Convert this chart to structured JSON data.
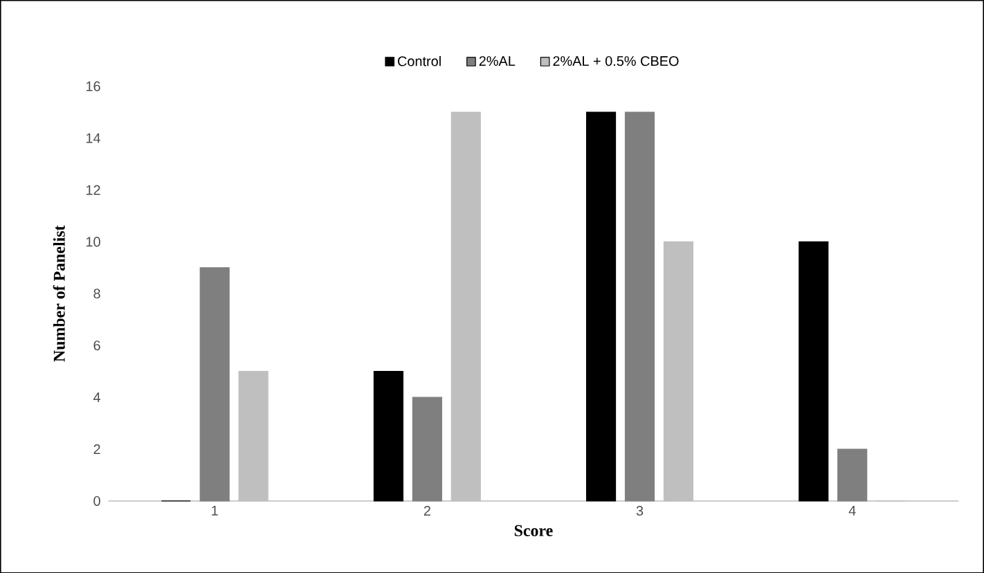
{
  "chart_data": {
    "type": "bar",
    "xlabel": "Score",
    "ylabel": "Number  of Panelist",
    "categories": [
      "1",
      "2",
      "3",
      "4"
    ],
    "series": [
      {
        "name": "Control",
        "color": "#000000",
        "values": [
          0,
          5,
          15,
          10
        ]
      },
      {
        "name": "2%AL",
        "color": "#7f7f7f",
        "values": [
          9,
          4,
          15,
          2
        ]
      },
      {
        "name": "2%AL + 0.5% CBEO",
        "color": "#bfbfbf",
        "values": [
          5,
          15,
          10,
          0
        ]
      }
    ],
    "ylim": [
      0,
      16
    ],
    "yticks": [
      0,
      2,
      4,
      6,
      8,
      10,
      12,
      14,
      16
    ],
    "grid": false,
    "legend": "top"
  }
}
